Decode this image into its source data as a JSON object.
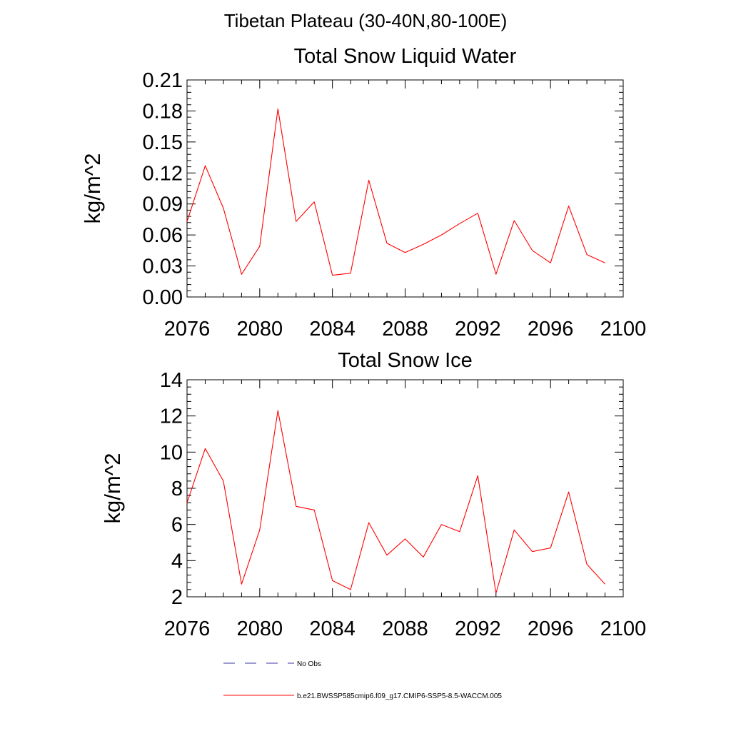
{
  "page_title": "Tibetan Plateau (30-40N,80-100E)",
  "chart_data": [
    {
      "type": "line",
      "title": "Total Snow Liquid Water",
      "xlabel": "",
      "ylabel": "kg/m^2",
      "xlim": [
        2076,
        2100
      ],
      "ylim": [
        0.0,
        0.21
      ],
      "x_ticks": [
        "2076",
        "2080",
        "2084",
        "2088",
        "2092",
        "2096",
        "2100"
      ],
      "y_ticks": [
        "0.00",
        "0.03",
        "0.06",
        "0.09",
        "0.12",
        "0.15",
        "0.18",
        "0.21"
      ],
      "grid": false,
      "series": [
        {
          "name": "b.e21.BWSSP585cmip6.f09_g17.CMIP6-SSP5-8.5-WACCM.005",
          "color": "#ff0000",
          "x": [
            2076,
            2077,
            2078,
            2079,
            2080,
            2081,
            2082,
            2083,
            2084,
            2085,
            2086,
            2087,
            2088,
            2089,
            2090,
            2091,
            2092,
            2093,
            2094,
            2095,
            2096,
            2097,
            2098,
            2099
          ],
          "y": [
            0.073,
            0.127,
            0.086,
            0.022,
            0.049,
            0.182,
            0.073,
            0.092,
            0.021,
            0.023,
            0.113,
            0.052,
            0.043,
            0.051,
            0.06,
            0.071,
            0.081,
            0.022,
            0.074,
            0.045,
            0.033,
            0.088,
            0.041,
            0.033
          ]
        }
      ]
    },
    {
      "type": "line",
      "title": "Total Snow Ice",
      "xlabel": "",
      "ylabel": "kg/m^2",
      "xlim": [
        2076,
        2100
      ],
      "ylim": [
        2,
        14
      ],
      "x_ticks": [
        "2076",
        "2080",
        "2084",
        "2088",
        "2092",
        "2096",
        "2100"
      ],
      "y_ticks": [
        "2",
        "4",
        "6",
        "8",
        "10",
        "12",
        "14"
      ],
      "grid": false,
      "series": [
        {
          "name": "b.e21.BWSSP585cmip6.f09_g17.CMIP6-SSP5-8.5-WACCM.005",
          "color": "#ff0000",
          "x": [
            2076,
            2077,
            2078,
            2079,
            2080,
            2081,
            2082,
            2083,
            2084,
            2085,
            2086,
            2087,
            2088,
            2089,
            2090,
            2091,
            2092,
            2093,
            2094,
            2095,
            2096,
            2097,
            2098,
            2099
          ],
          "y": [
            7.2,
            10.2,
            8.4,
            2.7,
            5.7,
            12.3,
            7.0,
            6.8,
            2.9,
            2.4,
            6.1,
            4.3,
            5.2,
            4.2,
            6.0,
            5.6,
            8.7,
            2.2,
            5.7,
            4.5,
            4.7,
            7.8,
            3.8,
            2.7
          ]
        }
      ]
    }
  ],
  "legend": {
    "placement": "bottom",
    "items": [
      {
        "label": "No Obs",
        "color": "#3a3aa0",
        "dash": true
      },
      {
        "label": "b.e21.BWSSP585cmip6.f09_g17.CMIP6-SSP5-8.5-WACCM.005",
        "color": "#ff0000",
        "dash": false
      }
    ]
  }
}
